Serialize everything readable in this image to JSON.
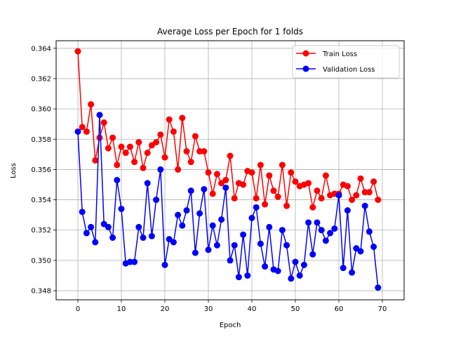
{
  "chart_data": {
    "type": "line",
    "title": "Average Loss per Epoch for 1 folds",
    "xlabel": "Epoch",
    "ylabel": "Loss",
    "xlim": [
      -5,
      75
    ],
    "ylim": [
      0.3474,
      0.3645
    ],
    "xticks": [
      0,
      10,
      20,
      30,
      40,
      50,
      60,
      70
    ],
    "yticks": [
      0.348,
      0.35,
      0.352,
      0.354,
      0.356,
      0.358,
      0.36,
      0.362,
      0.364
    ],
    "grid": true,
    "legend_position": "top-right",
    "x": [
      0,
      1,
      2,
      3,
      4,
      5,
      6,
      7,
      8,
      9,
      10,
      11,
      12,
      13,
      14,
      15,
      16,
      17,
      18,
      19,
      20,
      21,
      22,
      23,
      24,
      25,
      26,
      27,
      28,
      29,
      30,
      31,
      32,
      33,
      34,
      35,
      36,
      37,
      38,
      39,
      40,
      41,
      42,
      43,
      44,
      45,
      46,
      47,
      48,
      49,
      50,
      51,
      52,
      53,
      54,
      55,
      56,
      57,
      58,
      59,
      60,
      61,
      62,
      63,
      64,
      65,
      66,
      67,
      68,
      69
    ],
    "series": [
      {
        "name": "Train Loss",
        "color": "#ff0000",
        "values": [
          0.3638,
          0.3588,
          0.3585,
          0.3603,
          0.3566,
          0.3581,
          0.3591,
          0.3574,
          0.3581,
          0.3563,
          0.3575,
          0.3571,
          0.3575,
          0.3565,
          0.3578,
          0.3561,
          0.3571,
          0.3576,
          0.3578,
          0.3583,
          0.3568,
          0.3593,
          0.3585,
          0.356,
          0.3594,
          0.3572,
          0.3565,
          0.3582,
          0.3572,
          0.3572,
          0.3558,
          0.3544,
          0.3557,
          0.3551,
          0.3553,
          0.3569,
          0.3541,
          0.3551,
          0.355,
          0.3559,
          0.3558,
          0.3541,
          0.3563,
          0.3537,
          0.3556,
          0.3546,
          0.3542,
          0.3563,
          0.3536,
          0.3558,
          0.3552,
          0.3549,
          0.355,
          0.3551,
          0.3535,
          0.3546,
          0.3541,
          0.3556,
          0.3543,
          0.3544,
          0.3544,
          0.355,
          0.3549,
          0.354,
          0.3543,
          0.3554,
          0.3545,
          0.3545,
          0.3552,
          0.354
        ]
      },
      {
        "name": "Validation Loss",
        "color": "#0000ff",
        "values": [
          0.3585,
          0.3532,
          0.3518,
          0.3522,
          0.3512,
          0.3596,
          0.3524,
          0.3522,
          0.3515,
          0.3553,
          0.3534,
          0.3498,
          0.3499,
          0.3499,
          0.3522,
          0.3515,
          0.3551,
          0.3516,
          0.354,
          0.356,
          0.3497,
          0.3514,
          0.3512,
          0.353,
          0.3523,
          0.3533,
          0.3546,
          0.3505,
          0.3531,
          0.3547,
          0.3507,
          0.3523,
          0.351,
          0.3527,
          0.3548,
          0.35,
          0.351,
          0.3489,
          0.3517,
          0.349,
          0.3528,
          0.3535,
          0.3511,
          0.3496,
          0.3522,
          0.3494,
          0.3493,
          0.352,
          0.351,
          0.3488,
          0.3499,
          0.349,
          0.3497,
          0.3525,
          0.3504,
          0.3525,
          0.352,
          0.3513,
          0.3518,
          0.3521,
          0.3543,
          0.3495,
          0.3533,
          0.3492,
          0.3508,
          0.3506,
          0.3536,
          0.3519,
          0.3509,
          0.3482
        ]
      }
    ]
  }
}
